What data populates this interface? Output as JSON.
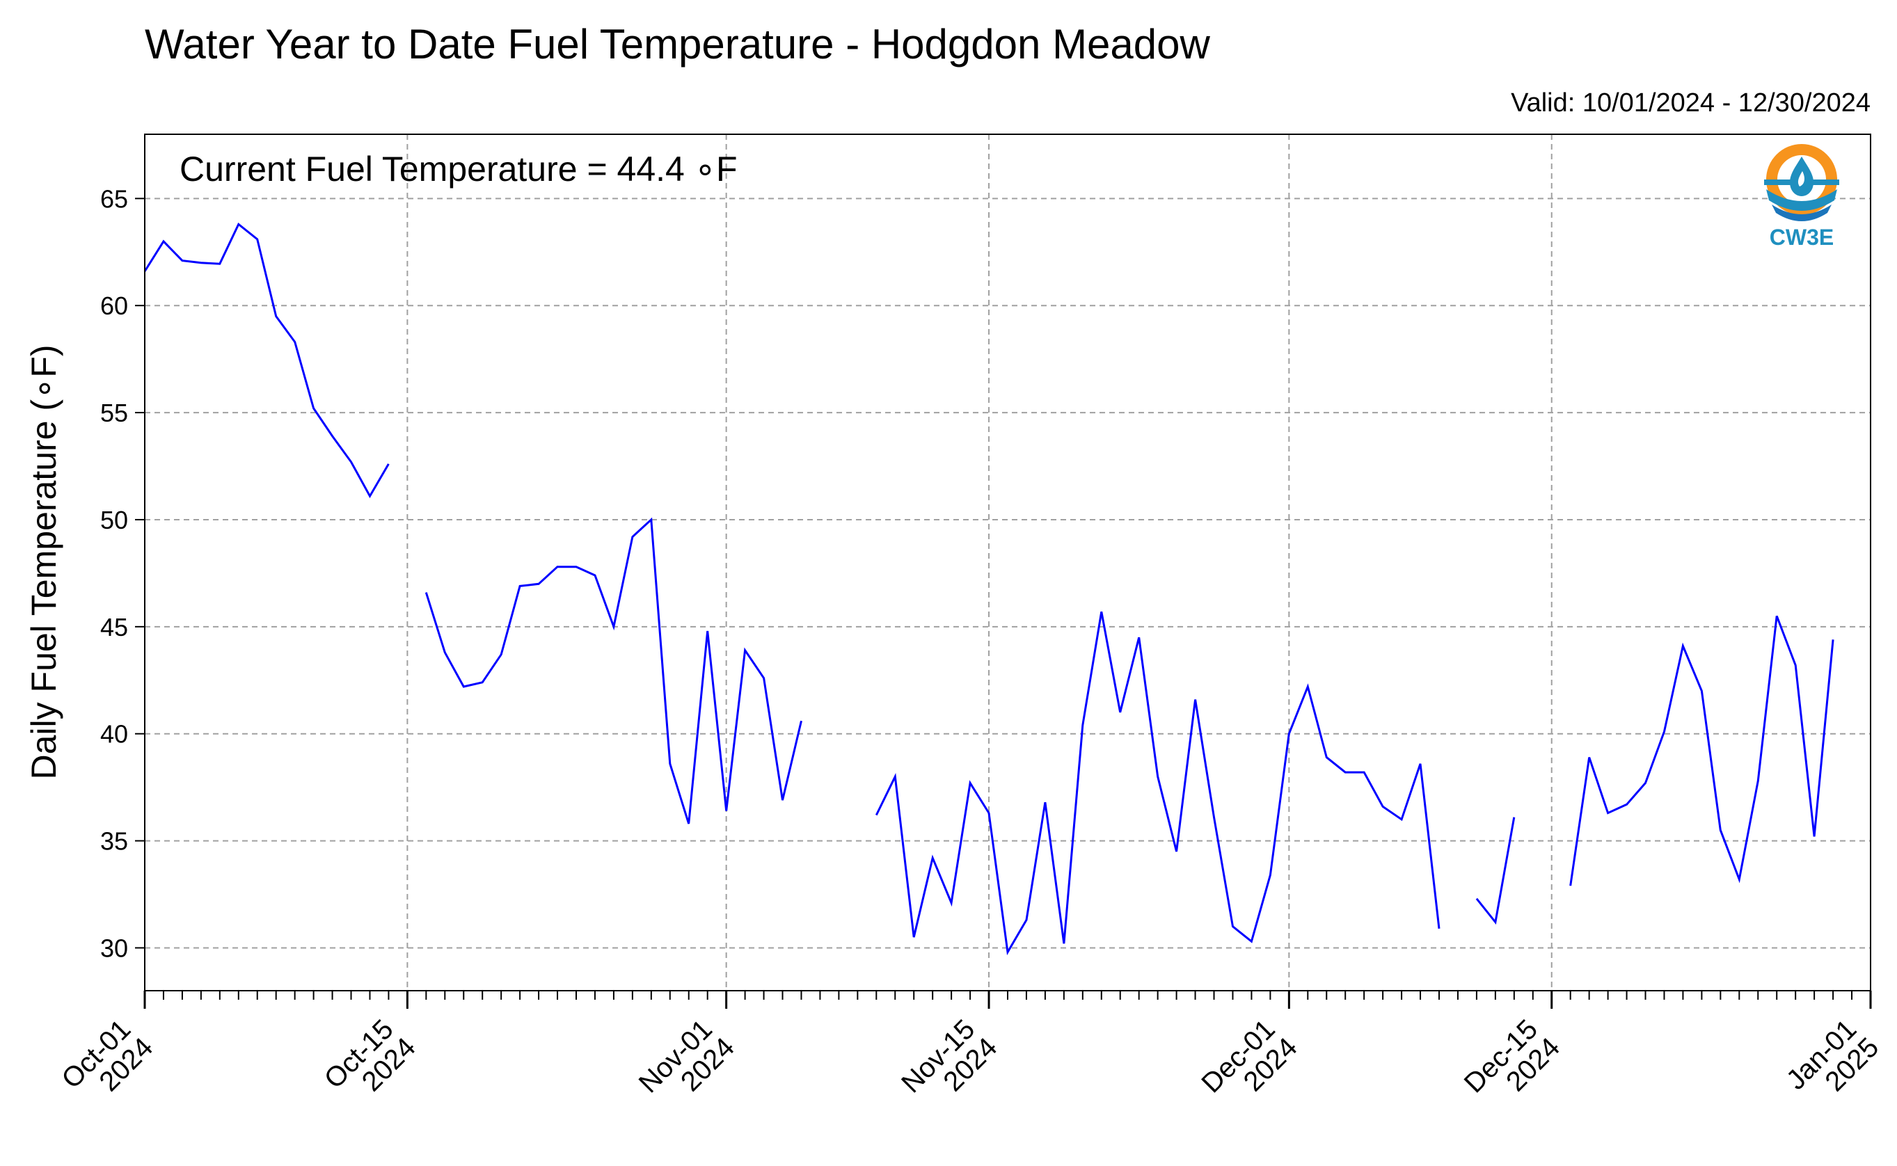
{
  "chart_data": {
    "type": "line",
    "title": "Water Year to Date Fuel Temperature - Hodgdon Meadow",
    "subtitle": "Valid: 10/01/2024 - 12/30/2024",
    "annotation": "Current Fuel Temperature = 44.4  ∘F",
    "ylabel": "Daily Fuel Temperature (∘F)",
    "xlabel": "",
    "ylim": [
      28,
      68
    ],
    "xlim": [
      "2024-10-01",
      "2025-01-01"
    ],
    "grid": true,
    "legend": "none",
    "line_color": "#0000ff",
    "x_ticks": [
      {
        "date": "2024-10-01",
        "line1": "Oct-01",
        "line2": "2024"
      },
      {
        "date": "2024-10-15",
        "line1": "Oct-15",
        "line2": "2024"
      },
      {
        "date": "2024-11-01",
        "line1": "Nov-01",
        "line2": "2024"
      },
      {
        "date": "2024-11-15",
        "line1": "Nov-15",
        "line2": "2024"
      },
      {
        "date": "2024-12-01",
        "line1": "Dec-01",
        "line2": "2024"
      },
      {
        "date": "2024-12-15",
        "line1": "Dec-15",
        "line2": "2024"
      },
      {
        "date": "2025-01-01",
        "line1": "Jan-01",
        "line2": "2025"
      }
    ],
    "y_ticks": [
      30,
      35,
      40,
      45,
      50,
      55,
      60,
      65
    ],
    "series": [
      {
        "color": "#0000ff",
        "points": [
          [
            "2024-10-01",
            61.6
          ],
          [
            "2024-10-02",
            63.0
          ],
          [
            "2024-10-03",
            62.1
          ],
          [
            "2024-10-04",
            62.0
          ],
          [
            "2024-10-05",
            61.95
          ],
          [
            "2024-10-06",
            63.8
          ],
          [
            "2024-10-07",
            63.1
          ],
          [
            "2024-10-08",
            59.5
          ],
          [
            "2024-10-09",
            58.3
          ],
          [
            "2024-10-10",
            55.2
          ],
          [
            "2024-10-11",
            53.9
          ],
          [
            "2024-10-12",
            52.7
          ],
          [
            "2024-10-13",
            51.1
          ],
          [
            "2024-10-14",
            52.6
          ],
          [
            "2024-10-15",
            null
          ],
          [
            "2024-10-16",
            46.6
          ],
          [
            "2024-10-17",
            43.8
          ],
          [
            "2024-10-18",
            42.2
          ],
          [
            "2024-10-19",
            42.4
          ],
          [
            "2024-10-20",
            43.7
          ],
          [
            "2024-10-21",
            46.9
          ],
          [
            "2024-10-22",
            47.0
          ],
          [
            "2024-10-23",
            47.8
          ],
          [
            "2024-10-24",
            47.8
          ],
          [
            "2024-10-25",
            47.4
          ],
          [
            "2024-10-26",
            45.0
          ],
          [
            "2024-10-27",
            49.2
          ],
          [
            "2024-10-28",
            50.0
          ],
          [
            "2024-10-29",
            38.6
          ],
          [
            "2024-10-30",
            35.8
          ],
          [
            "2024-10-31",
            44.8
          ],
          [
            "2024-11-01",
            36.4
          ],
          [
            "2024-11-02",
            43.9
          ],
          [
            "2024-11-03",
            42.6
          ],
          [
            "2024-11-04",
            36.9
          ],
          [
            "2024-11-05",
            40.6
          ],
          [
            "2024-11-06",
            null
          ],
          [
            "2024-11-07",
            null
          ],
          [
            "2024-11-08",
            null
          ],
          [
            "2024-11-09",
            36.2
          ],
          [
            "2024-11-10",
            38.0
          ],
          [
            "2024-11-11",
            30.5
          ],
          [
            "2024-11-12",
            34.2
          ],
          [
            "2024-11-13",
            32.1
          ],
          [
            "2024-11-14",
            37.7
          ],
          [
            "2024-11-15",
            36.3
          ],
          [
            "2024-11-16",
            29.8
          ],
          [
            "2024-11-17",
            31.3
          ],
          [
            "2024-11-18",
            36.8
          ],
          [
            "2024-11-19",
            30.2
          ],
          [
            "2024-11-20",
            40.4
          ],
          [
            "2024-11-21",
            45.7
          ],
          [
            "2024-11-22",
            41.0
          ],
          [
            "2024-11-23",
            44.5
          ],
          [
            "2024-11-24",
            38.0
          ],
          [
            "2024-11-25",
            34.5
          ],
          [
            "2024-11-26",
            41.6
          ],
          [
            "2024-11-27",
            36.1
          ],
          [
            "2024-11-28",
            31.0
          ],
          [
            "2024-11-29",
            30.3
          ],
          [
            "2024-11-30",
            33.4
          ],
          [
            "2024-12-01",
            40.0
          ],
          [
            "2024-12-02",
            42.2
          ],
          [
            "2024-12-03",
            38.9
          ],
          [
            "2024-12-04",
            38.2
          ],
          [
            "2024-12-05",
            38.2
          ],
          [
            "2024-12-06",
            36.6
          ],
          [
            "2024-12-07",
            36.0
          ],
          [
            "2024-12-08",
            38.6
          ],
          [
            "2024-12-09",
            30.9
          ],
          [
            "2024-12-10",
            null
          ],
          [
            "2024-12-11",
            32.3
          ],
          [
            "2024-12-12",
            31.2
          ],
          [
            "2024-12-13",
            36.1
          ],
          [
            "2024-12-14",
            null
          ],
          [
            "2024-12-15",
            null
          ],
          [
            "2024-12-16",
            32.9
          ],
          [
            "2024-12-17",
            38.9
          ],
          [
            "2024-12-18",
            36.3
          ],
          [
            "2024-12-19",
            36.7
          ],
          [
            "2024-12-20",
            37.7
          ],
          [
            "2024-12-21",
            40.1
          ],
          [
            "2024-12-22",
            44.1
          ],
          [
            "2024-12-23",
            42.0
          ],
          [
            "2024-12-24",
            35.5
          ],
          [
            "2024-12-25",
            33.2
          ],
          [
            "2024-12-26",
            37.8
          ],
          [
            "2024-12-27",
            45.5
          ],
          [
            "2024-12-28",
            43.2
          ],
          [
            "2024-12-29",
            35.2
          ],
          [
            "2024-12-30",
            44.4
          ]
        ]
      }
    ]
  },
  "logo": {
    "text": "CW3E",
    "icon": "water-drop-logo-icon",
    "colors": {
      "orange": "#f7941d",
      "teal": "#1f8fbf",
      "blue": "#1b75bb"
    }
  }
}
